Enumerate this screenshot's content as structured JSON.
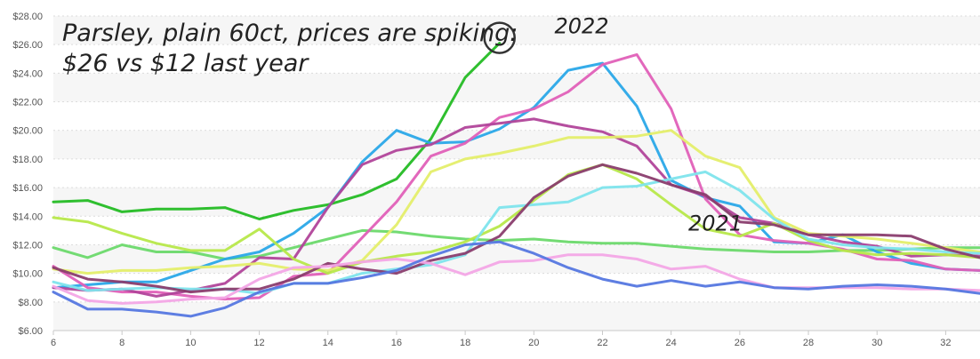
{
  "chart_data": {
    "type": "line",
    "title": "Parsley, plain 60ct, prices are spiking:",
    "subtitle": "$26 vs $12 last year",
    "xlabel": "",
    "ylabel": "",
    "xlim": [
      6,
      33
    ],
    "ylim": [
      6,
      28
    ],
    "y_ticks": [
      6,
      8,
      10,
      12,
      14,
      16,
      18,
      20,
      22,
      24,
      26,
      28
    ],
    "y_tick_labels": [
      "$6.00",
      "$8.00",
      "$10.00",
      "$12.00",
      "$14.00",
      "$16.00",
      "$18.00",
      "$20.00",
      "$22.00",
      "$24.00",
      "$26.00",
      "$28.00"
    ],
    "x_ticks": [
      6,
      8,
      10,
      12,
      14,
      16,
      18,
      20,
      22,
      24,
      26,
      28,
      30,
      32
    ],
    "x_tick_labels": [
      "6",
      "8",
      "10",
      "12",
      "14",
      "16",
      "18",
      "20",
      "22",
      "24",
      "26",
      "28",
      "30",
      "32"
    ],
    "grid": true,
    "annotations": [
      {
        "text": "2022",
        "x": 20.6,
        "y": 26.8
      },
      {
        "text": "2021",
        "x": 24.5,
        "y": 13.0
      }
    ],
    "highlight": {
      "x": 19,
      "y": 26.1
    },
    "series": [
      {
        "color": "#2fbf2f",
        "x": [
          6,
          7,
          8,
          9,
          10,
          11,
          12,
          13,
          14,
          15,
          16,
          17,
          18,
          19
        ],
        "values": [
          15.0,
          15.1,
          14.3,
          14.5,
          14.5,
          14.6,
          13.8,
          14.4,
          14.8,
          15.5,
          16.6,
          19.4,
          23.7,
          26.1
        ]
      },
      {
        "color": "#6cd96c",
        "x": [
          6,
          7,
          8,
          9,
          10,
          11,
          12,
          13,
          14,
          15,
          16,
          17,
          18,
          19,
          20,
          21,
          22,
          23,
          24,
          25,
          26,
          27,
          28,
          29,
          30,
          31,
          32,
          33
        ],
        "values": [
          11.8,
          11.1,
          12.0,
          11.5,
          11.5,
          11.0,
          11.2,
          11.8,
          12.4,
          13.0,
          12.9,
          12.6,
          12.4,
          12.3,
          12.4,
          12.2,
          12.1,
          12.1,
          11.9,
          11.7,
          11.6,
          11.5,
          11.5,
          11.6,
          11.6,
          11.7,
          11.8,
          11.8
        ]
      },
      {
        "color": "#2aa8e8",
        "x": [
          6,
          7,
          8,
          9,
          10,
          11,
          12,
          13,
          14,
          15,
          16,
          17,
          18,
          19,
          20,
          21,
          22,
          23,
          24,
          25,
          26,
          27,
          28,
          29,
          30,
          31,
          32,
          33
        ],
        "values": [
          9.0,
          9.2,
          9.4,
          9.4,
          10.2,
          11.0,
          11.5,
          12.8,
          14.6,
          17.8,
          20.0,
          19.1,
          19.2,
          20.1,
          21.6,
          24.2,
          24.7,
          21.7,
          16.5,
          15.3,
          14.7,
          12.2,
          12.1,
          12.7,
          11.5,
          10.7,
          10.3,
          10.2
        ]
      },
      {
        "color": "#e060b8",
        "x": [
          6,
          7,
          8,
          9,
          10,
          11,
          12,
          13,
          14,
          15,
          16,
          17,
          18,
          19,
          20,
          21,
          22,
          23,
          24,
          25,
          26,
          27,
          28,
          29,
          30,
          31,
          32,
          33
        ],
        "values": [
          10.5,
          9.0,
          8.7,
          8.7,
          8.4,
          8.2,
          8.3,
          9.8,
          10.0,
          12.5,
          15.0,
          18.2,
          19.1,
          20.9,
          21.5,
          22.7,
          24.6,
          25.3,
          21.5,
          15.2,
          12.7,
          12.3,
          12.1,
          11.7,
          11.0,
          10.9,
          10.3,
          10.2
        ]
      },
      {
        "color": "#b1459a",
        "x": [
          6,
          7,
          8,
          9,
          10,
          11,
          12,
          13,
          14,
          15,
          16,
          17,
          18,
          19,
          20,
          21,
          22,
          23,
          24,
          25,
          26,
          27,
          28,
          29,
          30,
          31,
          32,
          33
        ],
        "values": [
          9.0,
          8.8,
          8.9,
          8.4,
          8.8,
          9.3,
          11.1,
          11.0,
          14.6,
          17.6,
          18.6,
          19.0,
          20.2,
          20.5,
          20.8,
          20.3,
          19.9,
          18.9,
          16.2,
          15.4,
          13.9,
          13.5,
          12.7,
          12.2,
          11.9,
          11.2,
          11.3,
          11.2
        ]
      },
      {
        "color": "#e4ee6a",
        "x": [
          6,
          7,
          8,
          9,
          10,
          11,
          12,
          13,
          14,
          15,
          16,
          17,
          18,
          19,
          20,
          21,
          22,
          23,
          24,
          25,
          26,
          27,
          28,
          29,
          30,
          31,
          32,
          33
        ],
        "values": [
          10.3,
          10.0,
          10.2,
          10.2,
          10.4,
          10.5,
          10.7,
          10.3,
          10.2,
          10.9,
          13.4,
          17.1,
          18.0,
          18.4,
          18.9,
          19.5,
          19.5,
          19.6,
          20.0,
          18.2,
          17.4,
          13.9,
          12.8,
          12.6,
          12.4,
          12.1,
          11.8,
          11.5
        ]
      },
      {
        "color": "#b7e84a",
        "x": [
          6,
          7,
          8,
          9,
          10,
          11,
          12,
          13,
          14,
          15,
          16,
          17,
          18,
          19,
          20,
          21,
          22,
          23,
          24,
          25,
          26,
          27,
          28,
          29,
          30,
          31,
          32,
          33
        ],
        "values": [
          13.9,
          13.6,
          12.8,
          12.1,
          11.6,
          11.6,
          13.1,
          11.0,
          10.0,
          10.8,
          11.2,
          11.5,
          12.2,
          13.3,
          15.1,
          16.9,
          17.6,
          16.6,
          14.8,
          13.1,
          12.6,
          13.5,
          12.3,
          11.6,
          11.3,
          11.4,
          11.3,
          11.1
        ]
      },
      {
        "color": "#7ee4ec",
        "x": [
          6,
          7,
          8,
          9,
          10,
          11,
          12,
          13,
          14,
          15,
          16,
          17,
          18,
          19,
          20,
          21,
          22,
          23,
          24,
          25,
          26,
          27,
          28,
          29,
          30,
          31,
          32,
          33
        ],
        "values": [
          9.4,
          8.8,
          8.9,
          9.0,
          8.9,
          8.9,
          8.6,
          9.3,
          9.3,
          10.0,
          10.3,
          10.6,
          11.3,
          14.6,
          14.8,
          15.0,
          16.0,
          16.1,
          16.6,
          17.1,
          15.8,
          13.8,
          12.4,
          12.0,
          11.8,
          11.7,
          11.5,
          11.4
        ]
      },
      {
        "color": "#8a3d6e",
        "x": [
          6,
          7,
          8,
          9,
          10,
          11,
          12,
          13,
          14,
          15,
          16,
          17,
          18,
          19,
          20,
          21,
          22,
          23,
          24,
          25,
          26,
          27,
          28,
          29,
          30,
          31,
          32,
          33
        ],
        "values": [
          10.4,
          9.6,
          9.4,
          9.1,
          8.7,
          8.9,
          8.9,
          9.6,
          10.7,
          10.3,
          10.0,
          10.9,
          11.4,
          12.6,
          15.3,
          16.8,
          17.6,
          17.0,
          16.2,
          15.5,
          13.6,
          13.4,
          12.7,
          12.7,
          12.7,
          12.6,
          11.7,
          11.1
        ]
      },
      {
        "color": "#f3a6e6",
        "x": [
          6,
          7,
          8,
          9,
          10,
          11,
          12,
          13,
          14,
          15,
          16,
          17,
          18,
          19,
          20,
          21,
          22,
          23,
          24,
          25,
          26,
          27,
          28,
          29,
          30,
          31,
          32,
          33
        ],
        "values": [
          9.1,
          8.1,
          7.9,
          8.0,
          8.2,
          8.3,
          9.6,
          10.4,
          10.5,
          10.8,
          11.0,
          10.7,
          9.9,
          10.8,
          10.9,
          11.3,
          11.3,
          11.0,
          10.3,
          10.5,
          9.6,
          9.0,
          9.0,
          9.0,
          9.0,
          8.9,
          8.9,
          8.8
        ]
      },
      {
        "color": "#5577e0",
        "x": [
          6,
          7,
          8,
          9,
          10,
          11,
          12,
          13,
          14,
          15,
          16,
          17,
          18,
          19,
          20,
          21,
          22,
          23,
          24,
          25,
          26,
          27,
          28,
          29,
          30,
          31,
          32,
          33
        ],
        "values": [
          8.7,
          7.5,
          7.5,
          7.3,
          7.0,
          7.6,
          8.7,
          9.3,
          9.3,
          9.7,
          10.2,
          11.2,
          12.0,
          12.2,
          11.4,
          10.4,
          9.6,
          9.1,
          9.5,
          9.1,
          9.4,
          9.0,
          8.9,
          9.1,
          9.2,
          9.1,
          8.9,
          8.6
        ]
      }
    ]
  }
}
